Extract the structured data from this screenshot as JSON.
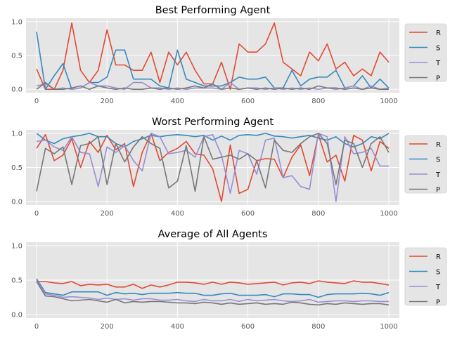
{
  "colors": {
    "R": "#E24A33",
    "S": "#348ABD",
    "T": "#988ED5",
    "P": "#777777"
  },
  "chart_data": [
    {
      "type": "line",
      "title": "Best Performing Agent",
      "xlim": [
        -30,
        1030
      ],
      "ylim": [
        -0.05,
        1.05
      ],
      "xticks": [
        "0",
        "200",
        "400",
        "600",
        "800",
        "1000"
      ],
      "yticks": [
        "0.0",
        "0.5",
        "1.0"
      ],
      "grid": true,
      "legend_position": "right",
      "x": [
        0,
        25,
        50,
        75,
        100,
        125,
        150,
        175,
        200,
        225,
        250,
        275,
        300,
        325,
        350,
        375,
        400,
        425,
        450,
        475,
        500,
        525,
        550,
        575,
        600,
        625,
        650,
        675,
        700,
        725,
        750,
        775,
        800,
        825,
        850,
        875,
        900,
        925,
        950,
        975,
        1000
      ],
      "series": [
        {
          "name": "R",
          "values": [
            0.3,
            0.0,
            0.0,
            0.28,
            0.98,
            0.28,
            0.1,
            0.28,
            0.88,
            0.36,
            0.36,
            0.28,
            0.28,
            0.55,
            0.1,
            0.55,
            0.36,
            0.55,
            0.28,
            0.08,
            0.08,
            0.4,
            0.0,
            0.67,
            0.55,
            0.55,
            0.67,
            0.98,
            0.4,
            0.3,
            0.2,
            0.55,
            0.42,
            0.67,
            0.3,
            0.4,
            0.2,
            0.3,
            0.2,
            0.55,
            0.4
          ]
        },
        {
          "name": "S",
          "values": [
            0.85,
            0.0,
            0.2,
            0.38,
            0.0,
            0.02,
            0.1,
            0.1,
            0.18,
            0.58,
            0.58,
            0.15,
            0.15,
            0.15,
            0.05,
            0.02,
            0.58,
            0.15,
            0.1,
            0.05,
            0.05,
            0.05,
            0.1,
            0.18,
            0.15,
            0.15,
            0.18,
            0.02,
            0.02,
            0.28,
            0.05,
            0.15,
            0.18,
            0.18,
            0.28,
            0.02,
            0.05,
            0.2,
            0.02,
            0.15,
            0.02
          ]
        },
        {
          "name": "T",
          "values": [
            0.05,
            0.08,
            0.0,
            0.02,
            0.0,
            0.02,
            0.1,
            0.05,
            0.05,
            0.02,
            0.0,
            0.1,
            0.1,
            0.02,
            0.02,
            0.0,
            0.02,
            0.0,
            0.02,
            0.02,
            0.02,
            0.0,
            0.1,
            0.0,
            0.02,
            0.02,
            0.0,
            0.02,
            0.0,
            0.02,
            0.0,
            0.02,
            0.0,
            0.02,
            0.0,
            0.02,
            0.05,
            0.0,
            0.05,
            0.0,
            0.02
          ]
        },
        {
          "name": "P",
          "values": [
            0.0,
            0.1,
            0.0,
            0.0,
            0.02,
            0.05,
            0.0,
            0.05,
            0.02,
            0.0,
            0.02,
            0.0,
            0.0,
            0.02,
            0.0,
            0.02,
            0.0,
            0.02,
            0.05,
            0.02,
            0.08,
            0.0,
            0.02,
            0.0,
            0.02,
            0.0,
            0.02,
            0.0,
            0.02,
            0.0,
            0.02,
            0.0,
            0.05,
            0.02,
            0.02,
            0.0,
            0.02,
            0.0,
            0.02,
            0.0,
            0.0
          ]
        }
      ]
    },
    {
      "type": "line",
      "title": "Worst Performing Agent",
      "xlim": [
        -30,
        1030
      ],
      "ylim": [
        -0.05,
        1.05
      ],
      "xticks": [
        "0",
        "200",
        "400",
        "600",
        "800",
        "1000"
      ],
      "yticks": [
        "0.0",
        "0.5",
        "1.0"
      ],
      "grid": true,
      "legend_position": "right",
      "x": [
        0,
        25,
        50,
        75,
        100,
        125,
        150,
        175,
        200,
        225,
        250,
        275,
        300,
        325,
        350,
        375,
        400,
        425,
        450,
        475,
        500,
        525,
        550,
        575,
        600,
        625,
        650,
        675,
        700,
        725,
        750,
        775,
        800,
        825,
        850,
        875,
        900,
        925,
        950,
        975,
        1000
      ],
      "series": [
        {
          "name": "R",
          "values": [
            0.78,
            0.98,
            0.6,
            0.68,
            0.92,
            0.5,
            0.88,
            0.72,
            0.97,
            0.76,
            0.85,
            0.22,
            0.72,
            1.0,
            0.6,
            0.72,
            0.78,
            0.88,
            0.7,
            0.68,
            0.48,
            0.0,
            0.83,
            0.12,
            0.18,
            0.6,
            0.63,
            0.62,
            0.35,
            0.65,
            0.83,
            0.38,
            0.98,
            0.58,
            0.68,
            0.3,
            0.97,
            0.9,
            0.45,
            0.88,
            0.78
          ]
        },
        {
          "name": "S",
          "values": [
            1.0,
            0.9,
            0.85,
            0.92,
            0.95,
            0.97,
            1.0,
            0.95,
            0.95,
            0.85,
            0.8,
            0.88,
            0.92,
            0.97,
            0.95,
            0.97,
            0.98,
            0.97,
            0.95,
            0.97,
            0.9,
            0.96,
            0.9,
            0.97,
            0.98,
            0.97,
            1.0,
            0.96,
            0.95,
            0.93,
            0.95,
            0.97,
            0.93,
            0.9,
            0.95,
            0.85,
            0.8,
            0.85,
            0.95,
            0.92,
            1.0
          ]
        },
        {
          "name": "T",
          "values": [
            0.88,
            0.9,
            0.8,
            0.75,
            0.95,
            0.72,
            0.7,
            0.22,
            0.8,
            0.72,
            0.82,
            0.6,
            0.45,
            1.0,
            0.95,
            0.7,
            0.72,
            0.75,
            0.65,
            0.95,
            0.98,
            0.68,
            0.12,
            0.75,
            0.7,
            0.4,
            0.9,
            0.93,
            0.35,
            0.38,
            0.22,
            0.18,
            1.0,
            0.95,
            0.0,
            0.95,
            0.7,
            0.72,
            0.78,
            0.52,
            0.52
          ]
        },
        {
          "name": "P",
          "values": [
            0.15,
            0.78,
            0.7,
            0.8,
            0.25,
            0.82,
            0.85,
            0.95,
            0.25,
            0.85,
            0.58,
            0.8,
            0.95,
            0.85,
            0.78,
            0.2,
            0.3,
            0.82,
            0.15,
            0.95,
            0.62,
            0.65,
            0.68,
            0.62,
            0.7,
            0.6,
            0.2,
            0.9,
            0.75,
            0.72,
            0.85,
            0.95,
            1.0,
            0.85,
            0.25,
            0.9,
            0.85,
            0.5,
            0.85,
            0.95,
            0.72
          ]
        }
      ]
    },
    {
      "type": "line",
      "title": "Average of All Agents",
      "xlim": [
        -30,
        1030
      ],
      "ylim": [
        -0.05,
        1.05
      ],
      "xticks": [
        "0",
        "200",
        "400",
        "600",
        "800",
        "1000"
      ],
      "yticks": [
        "0.0",
        "0.5",
        "1.0"
      ],
      "grid": true,
      "legend_position": "right",
      "x": [
        0,
        25,
        50,
        75,
        100,
        125,
        150,
        175,
        200,
        225,
        250,
        275,
        300,
        325,
        350,
        375,
        400,
        425,
        450,
        475,
        500,
        525,
        550,
        575,
        600,
        625,
        650,
        675,
        700,
        725,
        750,
        775,
        800,
        825,
        850,
        875,
        900,
        925,
        950,
        975,
        1000
      ],
      "series": [
        {
          "name": "R",
          "values": [
            0.48,
            0.48,
            0.46,
            0.45,
            0.48,
            0.42,
            0.44,
            0.43,
            0.44,
            0.4,
            0.4,
            0.44,
            0.38,
            0.43,
            0.4,
            0.43,
            0.47,
            0.47,
            0.46,
            0.44,
            0.47,
            0.44,
            0.47,
            0.46,
            0.44,
            0.45,
            0.46,
            0.47,
            0.43,
            0.46,
            0.47,
            0.45,
            0.49,
            0.47,
            0.46,
            0.45,
            0.49,
            0.47,
            0.47,
            0.45,
            0.43
          ]
        },
        {
          "name": "S",
          "values": [
            0.52,
            0.32,
            0.3,
            0.28,
            0.33,
            0.33,
            0.33,
            0.33,
            0.28,
            0.32,
            0.3,
            0.31,
            0.29,
            0.31,
            0.31,
            0.31,
            0.32,
            0.31,
            0.31,
            0.28,
            0.28,
            0.3,
            0.31,
            0.28,
            0.28,
            0.28,
            0.29,
            0.26,
            0.3,
            0.3,
            0.29,
            0.29,
            0.25,
            0.29,
            0.3,
            0.3,
            0.3,
            0.31,
            0.3,
            0.28,
            0.32
          ]
        },
        {
          "name": "T",
          "values": [
            0.5,
            0.3,
            0.28,
            0.25,
            0.26,
            0.25,
            0.24,
            0.22,
            0.24,
            0.22,
            0.23,
            0.21,
            0.23,
            0.23,
            0.21,
            0.21,
            0.22,
            0.2,
            0.19,
            0.22,
            0.2,
            0.2,
            0.22,
            0.19,
            0.22,
            0.2,
            0.21,
            0.22,
            0.2,
            0.19,
            0.2,
            0.22,
            0.18,
            0.19,
            0.2,
            0.2,
            0.19,
            0.2,
            0.2,
            0.19,
            0.19
          ]
        },
        {
          "name": "P",
          "values": [
            0.48,
            0.27,
            0.26,
            0.23,
            0.2,
            0.21,
            0.22,
            0.2,
            0.18,
            0.22,
            0.17,
            0.19,
            0.18,
            0.19,
            0.19,
            0.18,
            0.17,
            0.17,
            0.16,
            0.18,
            0.17,
            0.15,
            0.17,
            0.15,
            0.16,
            0.17,
            0.15,
            0.16,
            0.15,
            0.18,
            0.17,
            0.15,
            0.14,
            0.16,
            0.15,
            0.17,
            0.16,
            0.15,
            0.16,
            0.16,
            0.14
          ]
        }
      ]
    }
  ]
}
